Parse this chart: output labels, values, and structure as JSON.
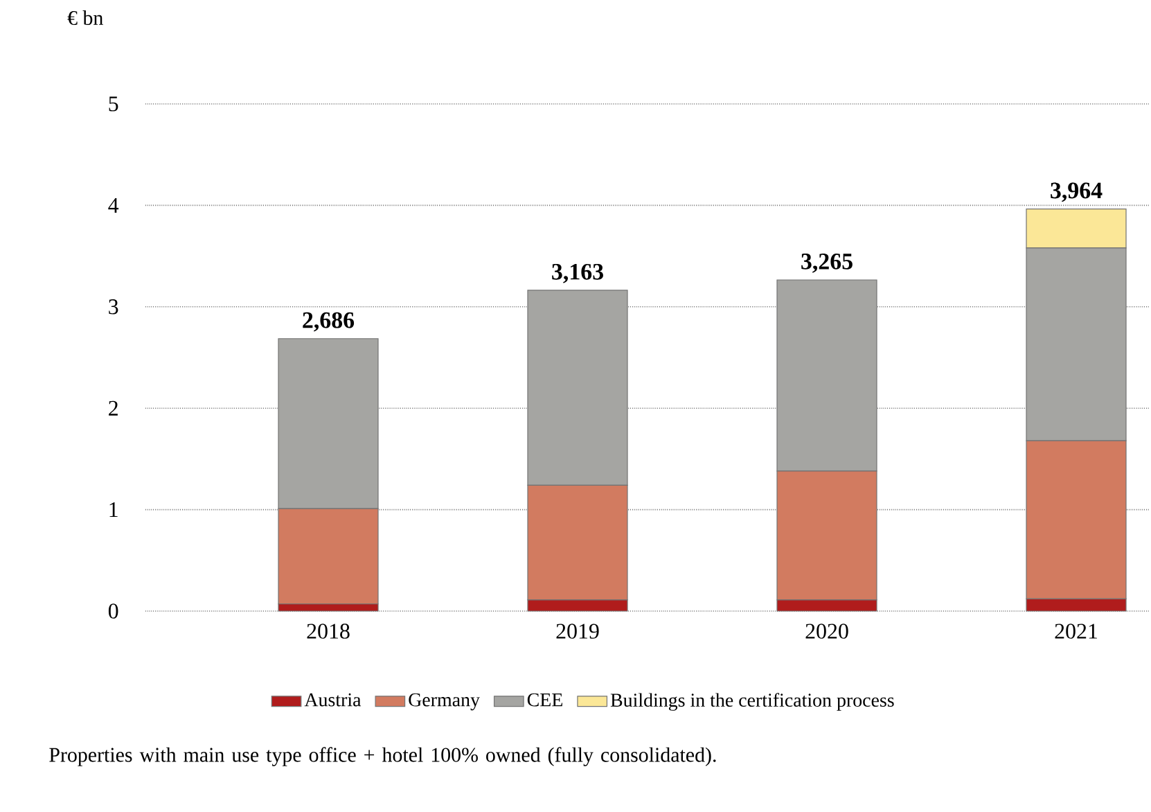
{
  "chart_data": {
    "type": "bar",
    "stacked": true,
    "categories": [
      "2018",
      "2019",
      "2020",
      "2021"
    ],
    "series": [
      {
        "name": "Austria",
        "color": "#b01c1c",
        "values": [
          0.07,
          0.11,
          0.11,
          0.12
        ]
      },
      {
        "name": "Germany",
        "color": "#d27b60",
        "values": [
          0.94,
          1.13,
          1.27,
          1.56
        ]
      },
      {
        "name": "CEE",
        "color": "#a5a5a2",
        "values": [
          1.676,
          1.923,
          1.885,
          1.9
        ]
      },
      {
        "name": "Buildings in the certification process",
        "color": "#fbe797",
        "values": [
          0,
          0,
          0,
          0.384
        ]
      }
    ],
    "totals": [
      "2,686",
      "3,163",
      "3,265",
      "3,964"
    ],
    "ylabel": "€ bn",
    "ylim": [
      0,
      5
    ],
    "yticks": [
      0,
      1,
      2,
      3,
      4,
      5
    ],
    "grid": "y",
    "legend": "bottom",
    "annotations": [
      "Properties with main use type office + hotel 100% owned (fully consolidated)."
    ]
  }
}
